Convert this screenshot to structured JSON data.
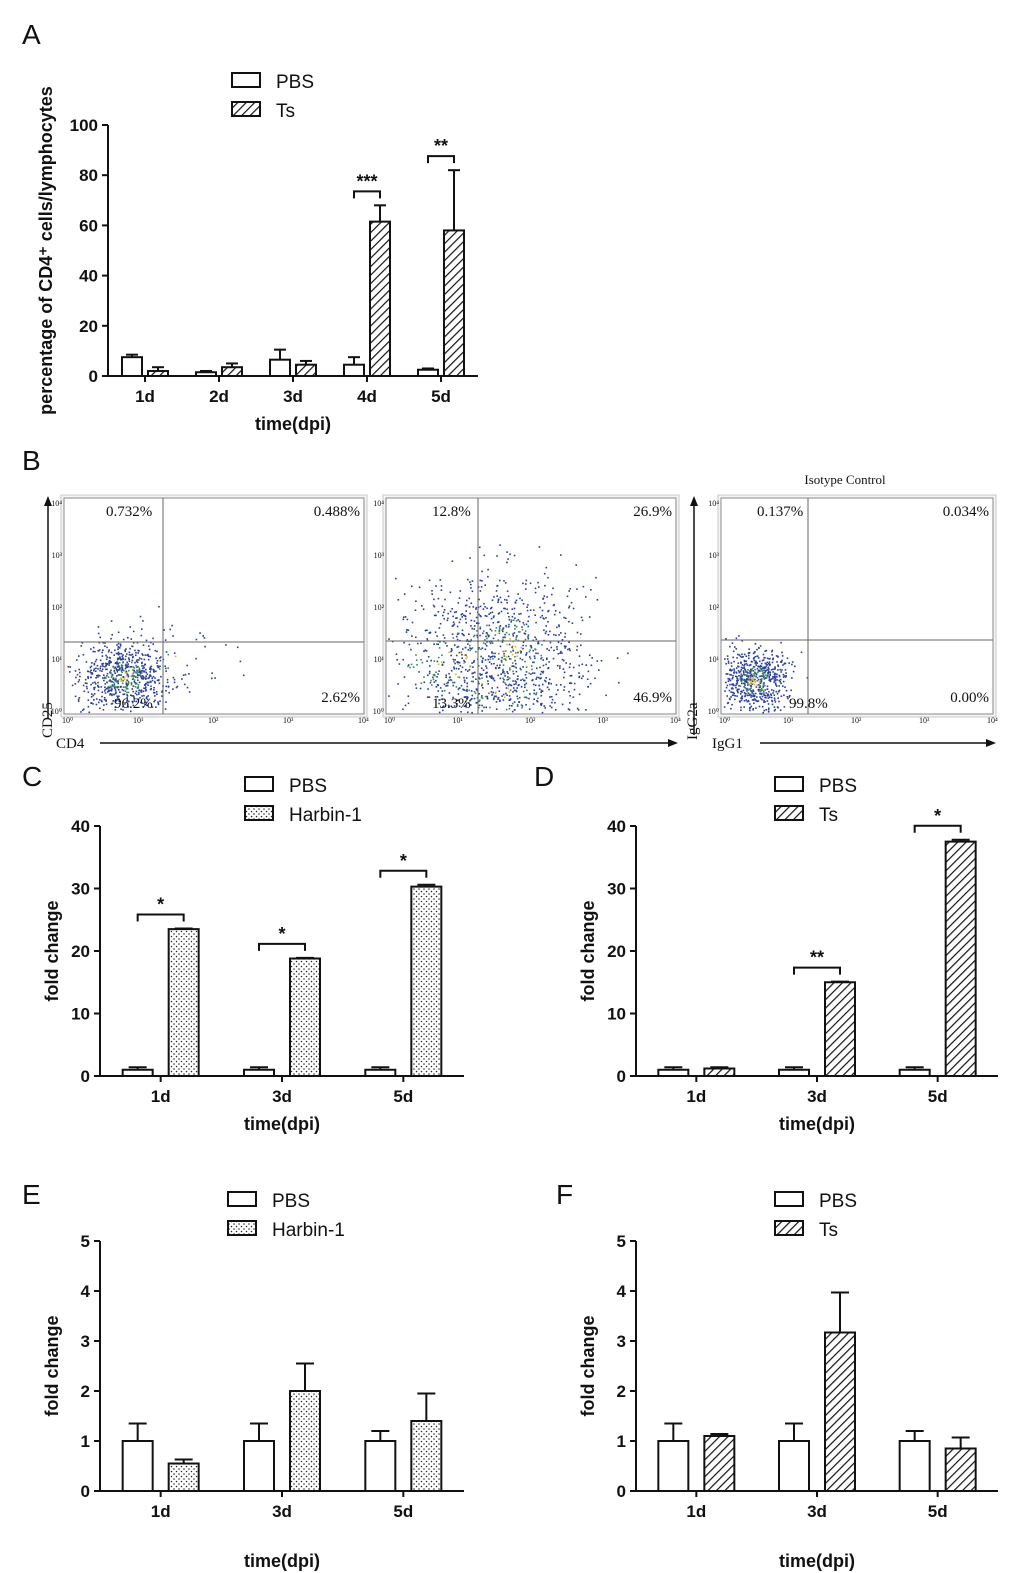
{
  "colors": {
    "ink": "#111111",
    "pbs_fill": "#ffffff",
    "dot_blue": "#2a3f9a",
    "dot_green": "#3c8a5a",
    "dot_yellow": "#d8b436",
    "plot_bg": "#f4f4f4",
    "frame": "#c8c8c8"
  },
  "chart_data": [
    {
      "panel": "A",
      "type": "bar",
      "categories": [
        "1d",
        "2d",
        "3d",
        "4d",
        "5d"
      ],
      "series": [
        {
          "name": "PBS",
          "pattern": "plain",
          "values": [
            7.5,
            1.5,
            6.5,
            4.5,
            2.5
          ],
          "errors": [
            1,
            0.5,
            4,
            3,
            0.5
          ]
        },
        {
          "name": "Ts",
          "pattern": "hatch",
          "values": [
            2,
            3.5,
            4.5,
            61.5,
            58
          ],
          "errors": [
            1.5,
            1.5,
            1.5,
            6.5,
            24
          ]
        }
      ],
      "ylim": [
        0,
        100
      ],
      "yticks": [
        0,
        20,
        40,
        60,
        80,
        100
      ],
      "xlabel": "time(dpi)",
      "ylabel": "percentage of CD4⁺ cells/lymphocytes",
      "annotations": [
        {
          "category": "4d",
          "text": "***"
        },
        {
          "category": "5d",
          "text": "**"
        }
      ]
    },
    {
      "panel": "B",
      "type": "scatter",
      "plots": [
        {
          "name": "flow-plot-1",
          "quadrants": [
            "0.732%",
            "0.488%",
            "96.2%",
            "2.62%"
          ]
        },
        {
          "name": "flow-plot-2",
          "quadrants": [
            "12.8%",
            "26.9%",
            "13.3%",
            "46.9%"
          ]
        },
        {
          "name": "flow-plot-3",
          "title": "Isotype Control",
          "quadrants": [
            "0.137%",
            "0.034%",
            "99.8%",
            "0.00%"
          ]
        }
      ],
      "xticks": [
        "10⁰",
        "10¹",
        "10²",
        "10³",
        "10⁴"
      ],
      "yticks": [
        "10⁴",
        "10³",
        "10²",
        "10¹",
        "10⁰"
      ],
      "axes": {
        "x1": "CD4",
        "y1": "CD25",
        "x2": "IgG1",
        "y2": "IgG2a"
      }
    },
    {
      "panel": "C",
      "type": "bar",
      "categories": [
        "1d",
        "3d",
        "5d"
      ],
      "series": [
        {
          "name": "PBS",
          "pattern": "plain",
          "values": [
            1,
            1,
            1
          ],
          "errors": [
            0.4,
            0.4,
            0.4
          ]
        },
        {
          "name": "Harbin-1",
          "pattern": "dots",
          "values": [
            23.5,
            18.8,
            30.3
          ],
          "errors": [
            0.1,
            0.1,
            0.3
          ]
        }
      ],
      "ylim": [
        0,
        40
      ],
      "yticks": [
        0,
        10,
        20,
        30,
        40
      ],
      "xlabel": "time(dpi)",
      "ylabel": "fold change",
      "annotations": [
        {
          "category": "1d",
          "text": "*"
        },
        {
          "category": "3d",
          "text": "*"
        },
        {
          "category": "5d",
          "text": "*"
        }
      ]
    },
    {
      "panel": "D",
      "type": "bar",
      "categories": [
        "1d",
        "3d",
        "5d"
      ],
      "series": [
        {
          "name": "PBS",
          "pattern": "plain",
          "values": [
            1,
            1,
            1
          ],
          "errors": [
            0.4,
            0.4,
            0.4
          ]
        },
        {
          "name": "Ts",
          "pattern": "hatch",
          "values": [
            1.2,
            15,
            37.5
          ],
          "errors": [
            0.2,
            0.1,
            0.3
          ]
        }
      ],
      "ylim": [
        0,
        40
      ],
      "yticks": [
        0,
        10,
        20,
        30,
        40
      ],
      "xlabel": "time(dpi)",
      "ylabel": "fold change",
      "annotations": [
        {
          "category": "3d",
          "text": "**"
        },
        {
          "category": "5d",
          "text": "*"
        }
      ]
    },
    {
      "panel": "E",
      "type": "bar",
      "categories": [
        "1d",
        "3d",
        "5d"
      ],
      "series": [
        {
          "name": "PBS",
          "pattern": "plain",
          "values": [
            1,
            1,
            1
          ],
          "errors": [
            0.35,
            0.35,
            0.2
          ]
        },
        {
          "name": "Harbin-1",
          "pattern": "dots",
          "values": [
            0.55,
            2,
            1.4
          ],
          "errors": [
            0.08,
            0.55,
            0.55
          ]
        }
      ],
      "ylim": [
        0,
        5
      ],
      "yticks": [
        0,
        1,
        2,
        3,
        4,
        5
      ],
      "xlabel": "time(dpi)",
      "ylabel": "fold change",
      "annotations": []
    },
    {
      "panel": "F",
      "type": "bar",
      "categories": [
        "1d",
        "3d",
        "5d"
      ],
      "series": [
        {
          "name": "PBS",
          "pattern": "plain",
          "values": [
            1,
            1,
            1
          ],
          "errors": [
            0.35,
            0.35,
            0.2
          ]
        },
        {
          "name": "Ts",
          "pattern": "hatch",
          "values": [
            1.1,
            3.17,
            0.85
          ],
          "errors": [
            0.04,
            0.8,
            0.22
          ]
        }
      ],
      "ylim": [
        0,
        5
      ],
      "yticks": [
        0,
        1,
        2,
        3,
        4,
        5
      ],
      "xlabel": "time(dpi)",
      "ylabel": "fold change",
      "annotations": []
    }
  ]
}
